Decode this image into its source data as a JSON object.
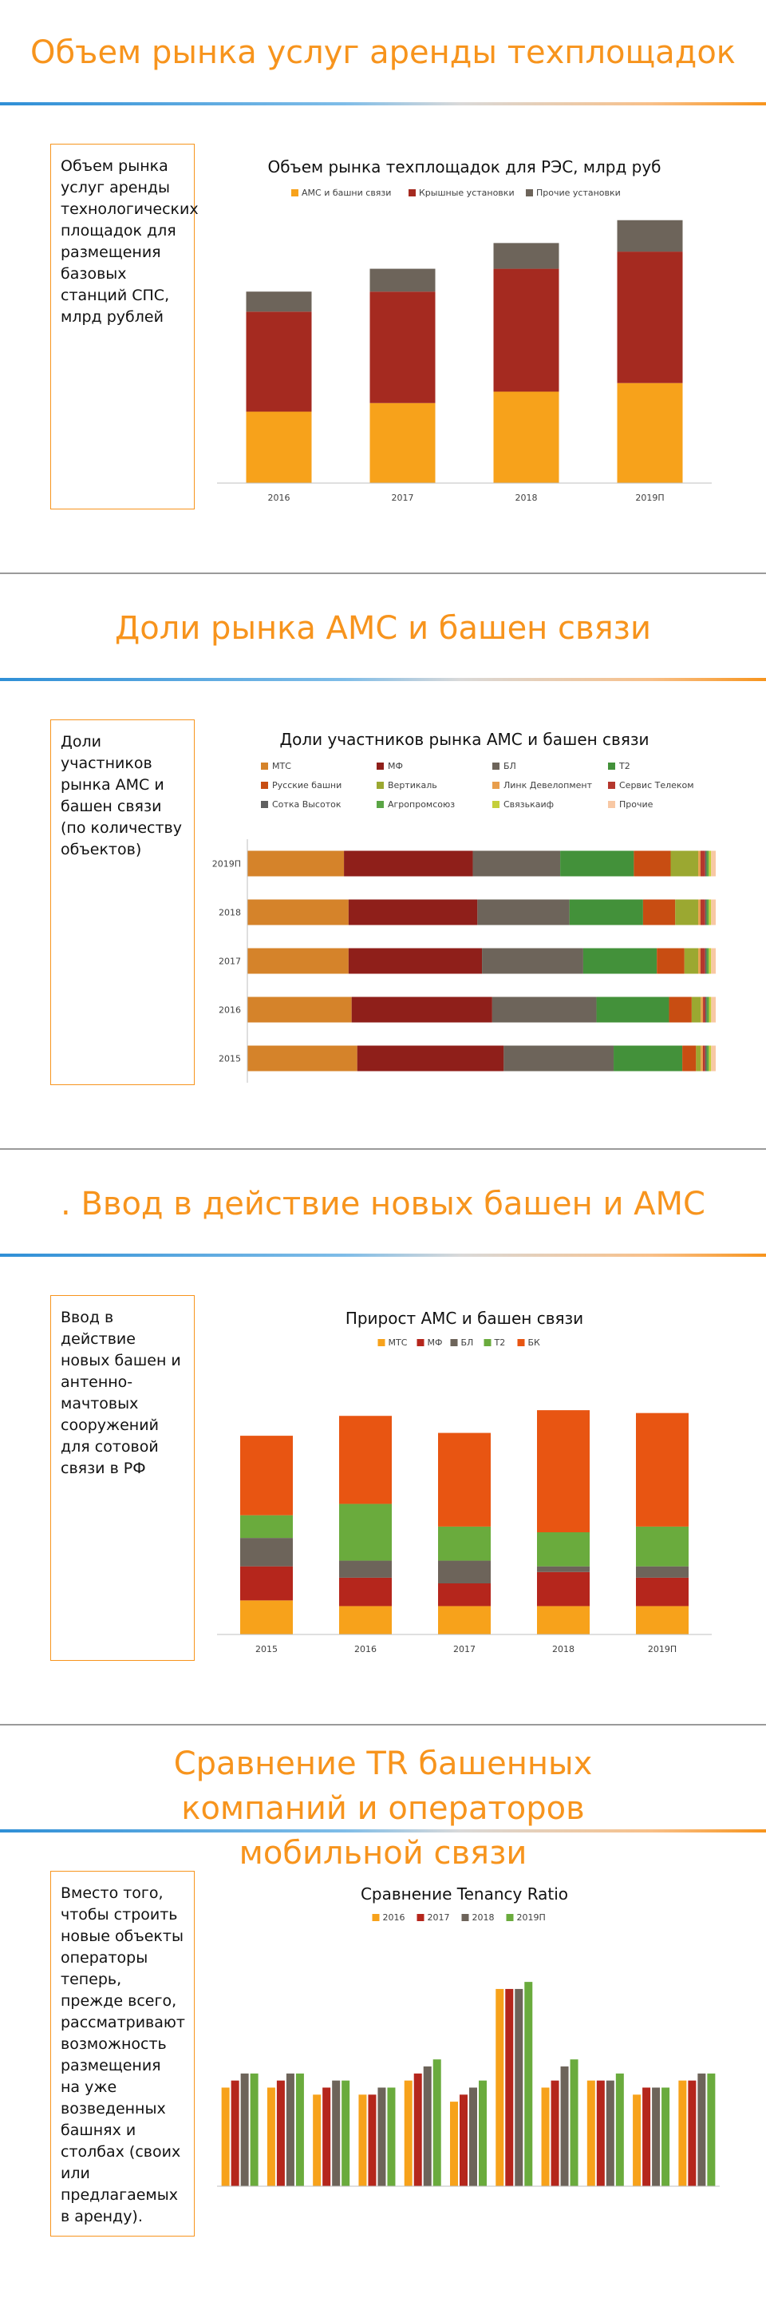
{
  "slides": [
    {
      "title": "Объем рынка услуг аренды техплощадок",
      "side_text": "Объем рынка услуг аренды технологических площадок для размещения базовых станций СПС, млрд рублей"
    },
    {
      "title": "Доли рынка АМС и башен связи",
      "side_text": "Доли участников рынка АМС и башен связи (по количеству объектов)"
    },
    {
      "title": ". Ввод в действие новых башен и АМС",
      "side_text": "Ввод в действие новых башен и антенно-мачтовых сооружений для сотовой связи в РФ"
    },
    {
      "title": "Сравнение TR башенных компаний и операторов мобильной связи",
      "side_text": "Вместо того, чтобы строить новые объекты операторы теперь, прежде всего, рассматривают возможность размещения на уже возведенных башнях и столбах (своих или предлагаемых в аренду)."
    }
  ],
  "chart_data": [
    {
      "type": "bar",
      "stacked": true,
      "title": "Объем рынка техплощадок для РЭС, млрд руб",
      "categories": [
        "2016",
        "2017",
        "2018",
        "2019П"
      ],
      "series": [
        {
          "name": "АМС и башни связи",
          "color": "#f7a21b",
          "values": [
            25,
            28,
            32,
            35
          ]
        },
        {
          "name": "Крышные установки",
          "color": "#a52a20",
          "values": [
            35,
            39,
            43,
            46
          ]
        },
        {
          "name": "Прочие установки",
          "color": "#6d645a",
          "values": [
            7,
            8,
            9,
            11
          ]
        }
      ],
      "ylim": [
        0,
        95
      ],
      "legend": "top"
    },
    {
      "type": "bar",
      "orientation": "horizontal",
      "stacked": true,
      "percent": true,
      "title": "Доли участников рынка АМС и башен связи",
      "categories": [
        "2019П",
        "2018",
        "2017",
        "2016",
        "2015"
      ],
      "series": [
        {
          "name": "МТС",
          "color": "#d5832a",
          "values": [
            21,
            22,
            22,
            23,
            24
          ]
        },
        {
          "name": "МФ",
          "color": "#8f1f1a",
          "values": [
            28,
            28,
            29,
            31,
            32
          ]
        },
        {
          "name": "БЛ",
          "color": "#6d645a",
          "values": [
            19,
            20,
            22,
            23,
            24
          ]
        },
        {
          "name": "Т2",
          "color": "#43913a",
          "values": [
            16,
            16,
            16,
            16,
            15
          ]
        },
        {
          "name": "Русские башни",
          "color": "#c84d12",
          "values": [
            8,
            7,
            6,
            5,
            3
          ]
        },
        {
          "name": "Вертикаль",
          "color": "#9ba831",
          "values": [
            6,
            5,
            3,
            2,
            1
          ]
        },
        {
          "name": "Линк Девелопмент",
          "color": "#e89e4c",
          "values": [
            0.5,
            0.5,
            0.5,
            0.5,
            0.5
          ]
        },
        {
          "name": "Сервис Телеком",
          "color": "#b5372d",
          "values": [
            1,
            1,
            1,
            0.5,
            0.5
          ]
        },
        {
          "name": "Сотка Высоток",
          "color": "#5f5f5f",
          "values": [
            0.3,
            0.3,
            0.3,
            0.3,
            0.3
          ]
        },
        {
          "name": "Агропромсоюз",
          "color": "#5aa545",
          "values": [
            0.5,
            0.5,
            0.5,
            0.5,
            0.5
          ]
        },
        {
          "name": "Связькаиф",
          "color": "#c4cf3a",
          "values": [
            0.5,
            0.5,
            0.5,
            0.5,
            0.5
          ]
        },
        {
          "name": "Прочие",
          "color": "#f8c8a4",
          "values": [
            1,
            1,
            1,
            1,
            1
          ]
        }
      ],
      "xlim": [
        0,
        100
      ],
      "legend": "top"
    },
    {
      "type": "bar",
      "stacked": true,
      "title": "Прирост АМС и башен связи",
      "categories": [
        "2015",
        "2016",
        "2017",
        "2018",
        "2019П"
      ],
      "series": [
        {
          "name": "МТС",
          "color": "#f7a21b",
          "values": [
            12,
            10,
            10,
            10,
            10
          ]
        },
        {
          "name": "МФ",
          "color": "#b5261c",
          "values": [
            12,
            10,
            8,
            12,
            10
          ]
        },
        {
          "name": "БЛ",
          "color": "#6d645a",
          "values": [
            10,
            6,
            8,
            2,
            4
          ]
        },
        {
          "name": "Т2",
          "color": "#6aab3d",
          "values": [
            8,
            20,
            12,
            12,
            14
          ]
        },
        {
          "name": "БК",
          "color": "#e85512",
          "values": [
            28,
            31,
            33,
            43,
            40
          ]
        }
      ],
      "ylim": [
        0,
        90
      ],
      "legend": "top"
    },
    {
      "type": "bar",
      "title": "Сравнение Tenancy Ratio",
      "categories": [
        "",
        "",
        "",
        "",
        "",
        "",
        "",
        "",
        "",
        "",
        ""
      ],
      "series": [
        {
          "name": "2016",
          "color": "#f7a21b",
          "values": [
            1.4,
            1.4,
            1.3,
            1.3,
            1.5,
            1.2,
            2.8,
            1.4,
            1.5,
            1.3,
            1.5
          ]
        },
        {
          "name": "2017",
          "color": "#b5261c",
          "values": [
            1.5,
            1.5,
            1.4,
            1.3,
            1.6,
            1.3,
            2.8,
            1.5,
            1.5,
            1.4,
            1.5
          ]
        },
        {
          "name": "2018",
          "color": "#6d645a",
          "values": [
            1.6,
            1.6,
            1.5,
            1.4,
            1.7,
            1.4,
            2.8,
            1.7,
            1.5,
            1.4,
            1.6
          ]
        },
        {
          "name": "2019П",
          "color": "#6aab3d",
          "values": [
            1.6,
            1.6,
            1.5,
            1.4,
            1.8,
            1.5,
            2.9,
            1.8,
            1.6,
            1.4,
            1.6
          ]
        }
      ],
      "ylim": [
        0,
        3.4
      ],
      "legend": "top"
    }
  ]
}
